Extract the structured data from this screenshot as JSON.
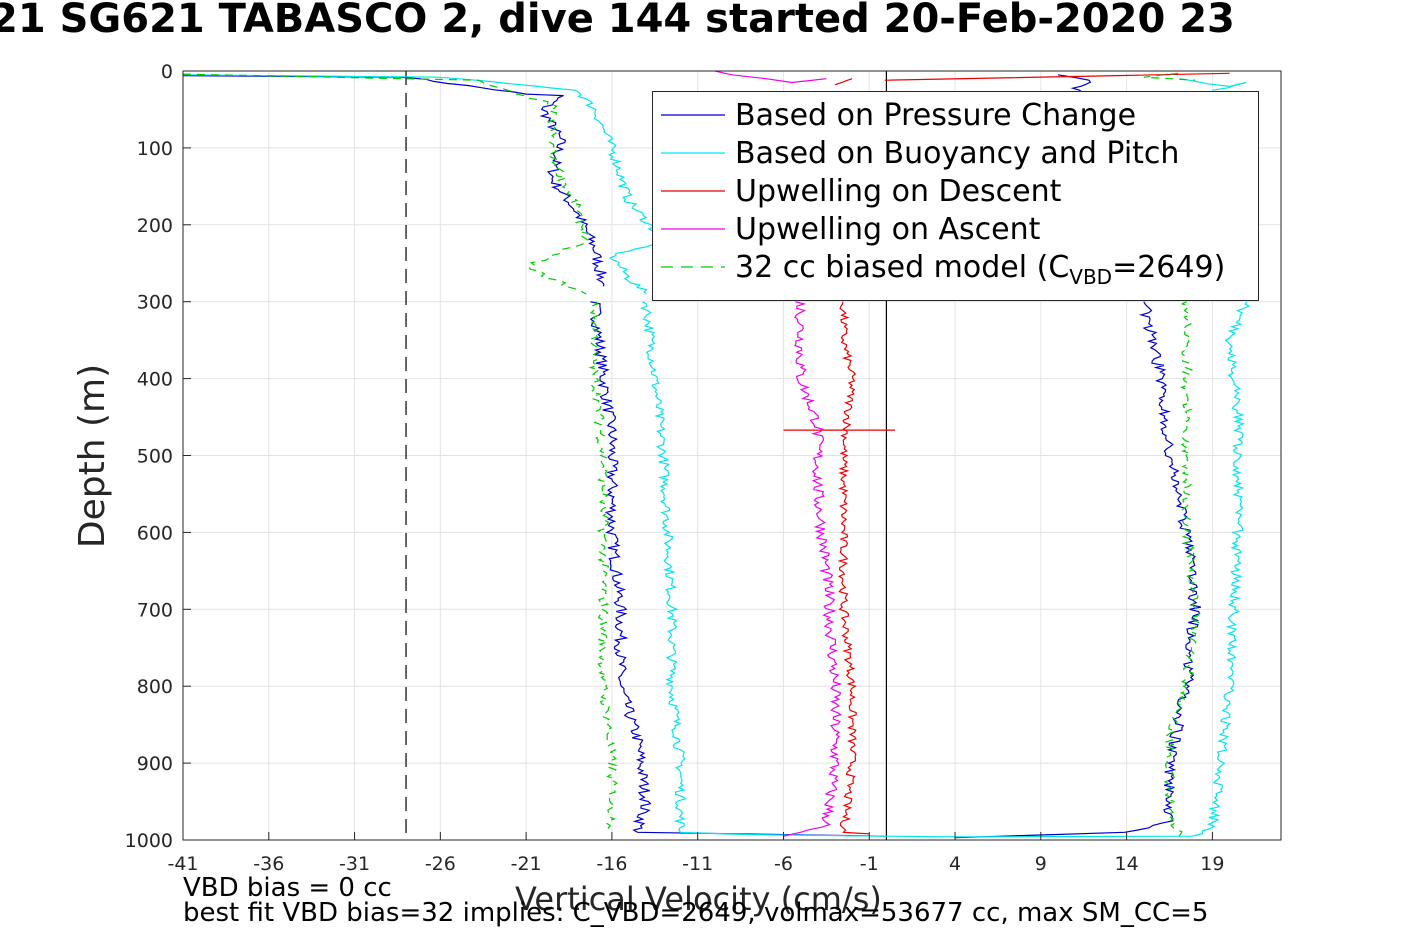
{
  "title": "21 SG621 TABASCO 2, dive 144 started 20-Feb-2020 23",
  "notes": {
    "vbd_bias": "VBD bias = 0 cc",
    "best_fit": "best fit VBD bias=32 implies: C_VBD=2649, volmax=53677 cc, max SM_CC=5"
  },
  "legend": {
    "items": [
      {
        "label": "Based on Pressure Change",
        "color": "#0000cc",
        "dash": "none"
      },
      {
        "label": "Based on Buoyancy and Pitch",
        "color": "#00e5ee",
        "dash": "none"
      },
      {
        "label": "Upwelling on Descent",
        "color": "#ee0000",
        "dash": "none"
      },
      {
        "label": "Upwelling on Ascent",
        "color": "#ee00ee",
        "dash": "none"
      },
      {
        "label_main": "32 cc biased model (C",
        "label_sub": "VBD",
        "label_tail": "=2649)",
        "color": "#00cc00",
        "dash": "8,6"
      }
    ]
  },
  "chart_data": {
    "type": "line",
    "title": "21 SG621 TABASCO 2, dive 144 started 20-Feb-2020 23",
    "xlabel": "Vertical Velocity (cm/s)",
    "ylabel": "Depth (m)",
    "xlim": [
      -41,
      23
    ],
    "ylim": [
      1000,
      0
    ],
    "y_reversed": true,
    "grid": true,
    "legend_position": "top-right",
    "x_ticks": [
      -41,
      -36,
      -31,
      -26,
      -21,
      -16,
      -11,
      -6,
      -1,
      4,
      9,
      14,
      19
    ],
    "y_ticks": [
      0,
      100,
      200,
      300,
      400,
      500,
      600,
      700,
      800,
      900,
      1000
    ],
    "reference_lines": [
      {
        "x": -28,
        "style": "dashed",
        "color": "#000000"
      },
      {
        "x": 0,
        "style": "solid",
        "color": "#000000"
      }
    ],
    "series": [
      {
        "name": "Based on Pressure Change",
        "color": "#0000cc",
        "noise": 0.35,
        "segments": [
          [
            [
              -41,
              6
            ],
            [
              -28,
              8
            ],
            [
              -21,
              30
            ],
            [
              -19,
              32
            ],
            [
              -20,
              50
            ],
            [
              -19,
              90
            ],
            [
              -19.5,
              140
            ],
            [
              -18,
              185
            ],
            [
              -17,
              230
            ],
            [
              -16.5,
              280
            ]
          ],
          [
            [
              -17,
              300
            ],
            [
              -16.5,
              400
            ],
            [
              -16,
              470
            ],
            [
              -16,
              600
            ],
            [
              -15.5,
              700
            ],
            [
              -15.5,
              800
            ],
            [
              -14.5,
              870
            ],
            [
              -14,
              950
            ],
            [
              -14.5,
              990
            ],
            [
              0,
              995
            ]
          ],
          [
            [
              4,
              997
            ],
            [
              14,
              990
            ],
            [
              16.5,
              975
            ],
            [
              16.5,
              900
            ],
            [
              17.5,
              800
            ],
            [
              18,
              700
            ],
            [
              17.5,
              600
            ],
            [
              16.5,
              500
            ],
            [
              16,
              400
            ],
            [
              15,
              300
            ]
          ],
          [
            [
              10,
              5
            ],
            [
              12,
              12
            ],
            [
              11,
              25
            ],
            [
              12,
              35
            ]
          ]
        ]
      },
      {
        "name": "Based on Buoyancy and Pitch",
        "color": "#00e5ee",
        "noise": 0.3,
        "segments": [
          [
            [
              -41,
              5
            ],
            [
              -26,
              8
            ],
            [
              -18,
              25
            ],
            [
              -17,
              50
            ],
            [
              -16,
              100
            ],
            [
              -15,
              170
            ],
            [
              -13,
              220
            ],
            [
              -16,
              240
            ],
            [
              -15,
              270
            ],
            [
              -14,
              290
            ]
          ],
          [
            [
              -14,
              300
            ],
            [
              -13.5,
              400
            ],
            [
              -13,
              500
            ],
            [
              -12.5,
              700
            ],
            [
              -12.5,
              800
            ],
            [
              -12,
              900
            ],
            [
              -12,
              990
            ],
            [
              -8,
              993
            ]
          ],
          [
            [
              -8,
              993
            ],
            [
              4,
              996
            ],
            [
              18,
              995
            ],
            [
              19,
              985
            ],
            [
              19.5,
              900
            ],
            [
              20,
              800
            ],
            [
              20.5,
              600
            ],
            [
              20.5,
              450
            ],
            [
              20,
              350
            ],
            [
              21,
              300
            ]
          ],
          [
            [
              17,
              10
            ],
            [
              20,
              20
            ],
            [
              21,
              15
            ],
            [
              19,
              25
            ]
          ]
        ]
      },
      {
        "name": "Upwelling on Descent",
        "color": "#ee0000",
        "noise": 0.25,
        "segments": [
          [
            [
              -2.5,
              300
            ],
            [
              -2.5,
              350
            ],
            [
              -2,
              400
            ],
            [
              -2.5,
              500
            ],
            [
              -2.5,
              700
            ],
            [
              -2,
              800
            ],
            [
              -2,
              900
            ],
            [
              -2.5,
              990
            ],
            [
              -1,
              992
            ]
          ],
          [
            [
              -6,
              467
            ],
            [
              0.5,
              467
            ]
          ],
          [
            [
              0,
              12
            ],
            [
              20,
              3
            ]
          ],
          [
            [
              -3,
              18
            ],
            [
              -2,
              10
            ]
          ]
        ]
      },
      {
        "name": "Upwelling on Ascent",
        "color": "#ee00ee",
        "noise": 0.35,
        "segments": [
          [
            [
              -5,
              300
            ],
            [
              -5,
              400
            ],
            [
              -4,
              460
            ],
            [
              -4,
              550
            ],
            [
              -3.5,
              650
            ],
            [
              -3,
              800
            ],
            [
              -3,
              900
            ],
            [
              -3.5,
              980
            ],
            [
              -5,
              990
            ],
            [
              -6,
              995
            ]
          ],
          [
            [
              -10,
              0
            ],
            [
              -9,
              5
            ],
            [
              -7,
              10
            ],
            [
              -5.5,
              15
            ],
            [
              -3.5,
              10
            ]
          ]
        ]
      },
      {
        "name": "32 cc biased model (CVBD=2649)",
        "color": "#00cc00",
        "noise": 0.3,
        "dash": "8,6",
        "segments": [
          [
            [
              -41,
              4
            ],
            [
              -24,
              12
            ],
            [
              -21,
              35
            ],
            [
              -19.5,
              40
            ],
            [
              -19.5,
              110
            ],
            [
              -18,
              180
            ],
            [
              -17.5,
              220
            ],
            [
              -21,
              255
            ],
            [
              -17.5,
              290
            ]
          ],
          [
            [
              -17,
              300
            ],
            [
              -17,
              400
            ],
            [
              -16.5,
              500
            ],
            [
              -16.5,
              650
            ],
            [
              -16.5,
              800
            ],
            [
              -16,
              900
            ],
            [
              -16,
              990
            ]
          ],
          [
            [
              17,
              995
            ],
            [
              16.5,
              950
            ],
            [
              16.5,
              870
            ],
            [
              17.5,
              800
            ],
            [
              18,
              700
            ],
            [
              17.5,
              600
            ],
            [
              17.5,
              500
            ],
            [
              17.5,
              400
            ],
            [
              17.5,
              300
            ]
          ],
          [
            [
              17,
              3
            ],
            [
              15,
              8
            ],
            [
              18,
              12
            ]
          ]
        ]
      }
    ]
  }
}
